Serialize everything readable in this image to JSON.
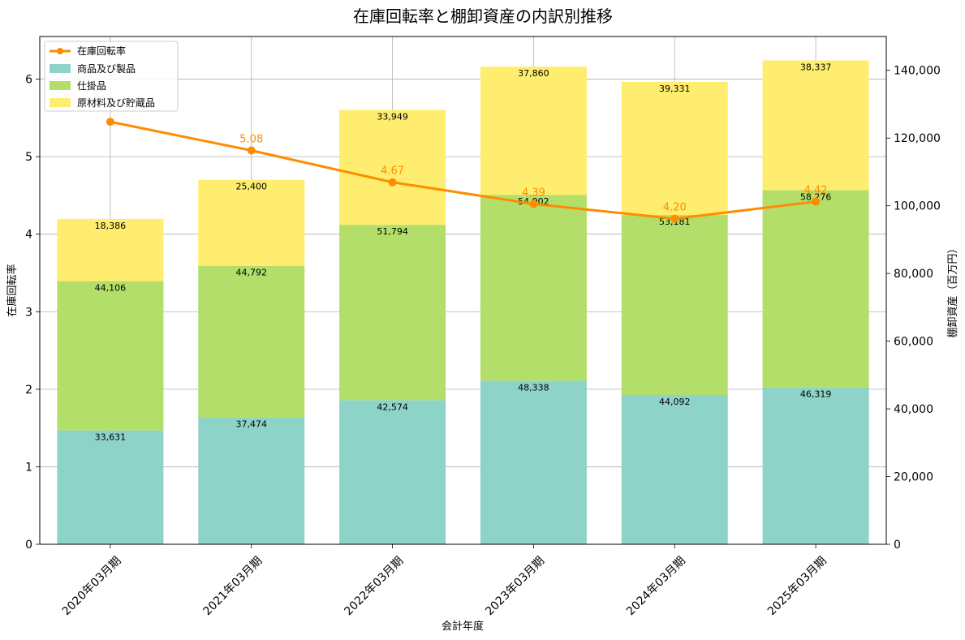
{
  "chart_data": {
    "type": "bar",
    "title": "在庫回転率と棚卸資産の内訳別推移",
    "xlabel": "会計年度",
    "ylabel": "在庫回転率",
    "y2label": "棚卸資産（百万円）",
    "grid": true,
    "legend_position": "top-left",
    "categories": [
      "2020年03月期",
      "2021年03月期",
      "2022年03月期",
      "2023年03月期",
      "2024年03月期",
      "2025年03月期"
    ],
    "ylim": [
      0,
      6.55
    ],
    "y_ticks": [
      0,
      1,
      2,
      3,
      4,
      5,
      6
    ],
    "y2lim": [
      0,
      150000
    ],
    "y2_ticks": [
      0,
      20000,
      40000,
      60000,
      80000,
      100000,
      120000,
      140000
    ],
    "y2_tick_labels": [
      "0",
      "20,000",
      "40,000",
      "60,000",
      "80,000",
      "100,000",
      "120,000",
      "140,000"
    ],
    "series": [
      {
        "name": "商品及び製品",
        "axis": "right",
        "kind": "stacked-bar",
        "color": "#8dd3c7",
        "values": [
          33631,
          37474,
          42574,
          48338,
          44092,
          46319
        ],
        "labels": [
          "33,631",
          "37,474",
          "42,574",
          "48,338",
          "44,092",
          "46,319"
        ]
      },
      {
        "name": "仕掛品",
        "axis": "right",
        "kind": "stacked-bar",
        "color": "#b3de69",
        "values": [
          44106,
          44792,
          51794,
          54902,
          53181,
          58276
        ],
        "labels": [
          "44,106",
          "44,792",
          "51,794",
          "54,902",
          "53,181",
          "58,276"
        ]
      },
      {
        "name": "原材料及び貯蔵品",
        "axis": "right",
        "kind": "stacked-bar",
        "color": "#ffed6f",
        "values": [
          18386,
          25400,
          33949,
          37860,
          39331,
          38337
        ],
        "labels": [
          "18,386",
          "25,400",
          "33,949",
          "37,860",
          "39,331",
          "38,337"
        ]
      }
    ],
    "line_series": {
      "name": "在庫回転率",
      "axis": "left",
      "kind": "line",
      "color": "#ff8c00",
      "values": [
        5.45,
        5.08,
        4.67,
        4.39,
        4.2,
        4.42
      ],
      "labels": [
        "",
        "5.08",
        "4.67",
        "4.39",
        "4.20",
        "4.42"
      ]
    }
  }
}
